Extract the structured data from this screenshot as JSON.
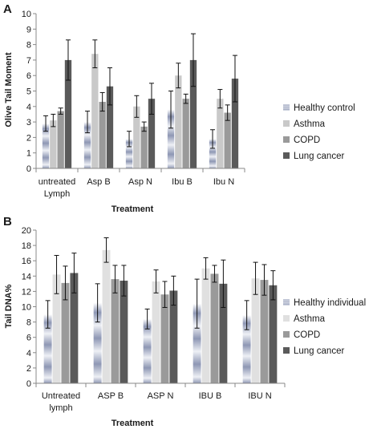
{
  "chart_data": [
    {
      "type": "bar",
      "panel_label": "A",
      "xlabel": "Treatment",
      "ylabel": "Olive Tail Moment",
      "ylim": [
        0,
        10
      ],
      "yticks": [
        0,
        1,
        2,
        3,
        4,
        5,
        6,
        7,
        8,
        9,
        10
      ],
      "categories": [
        [
          "untreated",
          "Lymph"
        ],
        [
          "Asp B"
        ],
        [
          "Asp N"
        ],
        [
          "Ibu B"
        ],
        [
          "Ibu N"
        ]
      ],
      "legend_position": "right",
      "grid": false,
      "series": [
        {
          "name": "Healthy control",
          "color": "#a9b3cc",
          "values": [
            2.9,
            3.0,
            1.9,
            3.8,
            1.9
          ],
          "errors": [
            0.5,
            0.7,
            0.5,
            1.2,
            0.6
          ]
        },
        {
          "name": "Asthma",
          "color": "#c9c9c9",
          "values": [
            3.1,
            7.4,
            4.0,
            6.0,
            4.5
          ],
          "errors": [
            0.4,
            0.9,
            0.7,
            0.8,
            0.6
          ]
        },
        {
          "name": "COPD",
          "color": "#9a9a9a",
          "values": [
            3.7,
            4.3,
            2.7,
            4.5,
            3.6
          ],
          "errors": [
            0.2,
            0.6,
            0.3,
            0.3,
            0.5
          ]
        },
        {
          "name": "Lung cancer",
          "color": "#5a5a5a",
          "values": [
            7.0,
            5.3,
            4.5,
            7.0,
            5.8
          ],
          "errors": [
            1.3,
            1.2,
            1.0,
            1.7,
            1.5
          ]
        }
      ]
    },
    {
      "type": "bar",
      "panel_label": "B",
      "xlabel": "Treatment",
      "ylabel": "Tail DNA%",
      "ylim": [
        0,
        20
      ],
      "yticks": [
        0,
        2,
        4,
        6,
        8,
        10,
        12,
        14,
        16,
        18,
        20
      ],
      "categories": [
        [
          "Untreated",
          "lymph"
        ],
        [
          "ASP B"
        ],
        [
          "ASP N"
        ],
        [
          "IBU B"
        ],
        [
          "IBU N"
        ]
      ],
      "legend_position": "right",
      "grid": false,
      "series": [
        {
          "name": "Healthy individual",
          "color": "#a9b3cc",
          "values": [
            9.0,
            10.5,
            8.4,
            10.4,
            8.9
          ],
          "errors": [
            1.8,
            2.5,
            1.3,
            3.2,
            1.9
          ]
        },
        {
          "name": "Asthma",
          "color": "#e0e0e0",
          "values": [
            14.2,
            17.4,
            13.3,
            15.0,
            13.7
          ],
          "errors": [
            2.5,
            1.6,
            1.5,
            1.4,
            2.1
          ]
        },
        {
          "name": "COPD",
          "color": "#9a9a9a",
          "values": [
            13.1,
            13.6,
            11.6,
            14.3,
            13.5
          ],
          "errors": [
            2.2,
            1.8,
            1.7,
            1.1,
            2.0
          ]
        },
        {
          "name": "Lung cancer",
          "color": "#5a5a5a",
          "values": [
            14.4,
            13.4,
            12.1,
            13.0,
            12.8
          ],
          "errors": [
            2.6,
            2.0,
            1.9,
            3.1,
            1.9
          ]
        }
      ]
    }
  ]
}
